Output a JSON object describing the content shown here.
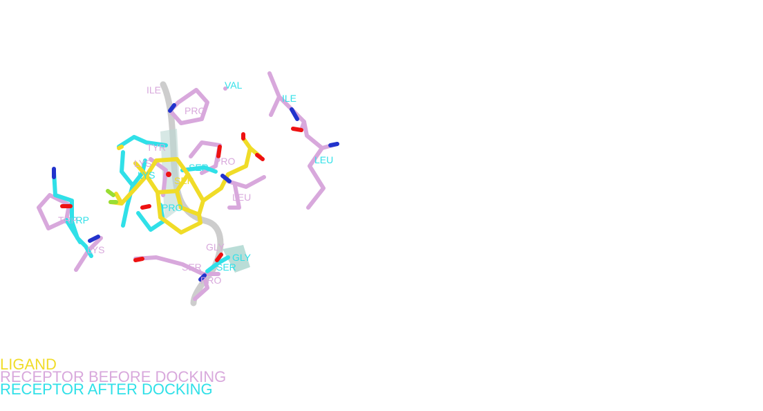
{
  "colors": {
    "ligand": "#f0dc28",
    "before": "#d8a8dc",
    "after": "#30e0e8",
    "oxygen": "#ee1111",
    "nitrogen": "#2233cc",
    "fluorine": "#99dd33",
    "ribbon": "#c8c8c8"
  },
  "labels": {
    "ile_before": "ILE",
    "val_after": "VAL",
    "ile_right": "ILE",
    "pro_top": "PRO",
    "tyr": "TYR",
    "lys_mid_before": "LYS",
    "lys_mid_after": "LYS",
    "ser_mid_after": "SER",
    "ser_mid_ligand": "SER",
    "pro_mid": "PRO",
    "leu_right": "LEU",
    "leu_mid": "LEU",
    "pro_low": "PRO",
    "trp_after": "TRP",
    "trp_before": "TRP",
    "lys_left": "LYS",
    "gly_before": "GLY",
    "gly_after": "GLY",
    "ser_low_before": "SER",
    "ser_low_after": "SER",
    "pro_bottom": "PRO"
  },
  "legend": {
    "ligand": "LIGAND",
    "before": "RECEPTOR BEFORE DOCKING",
    "after": "RECEPTOR AFTER DOCKING"
  }
}
